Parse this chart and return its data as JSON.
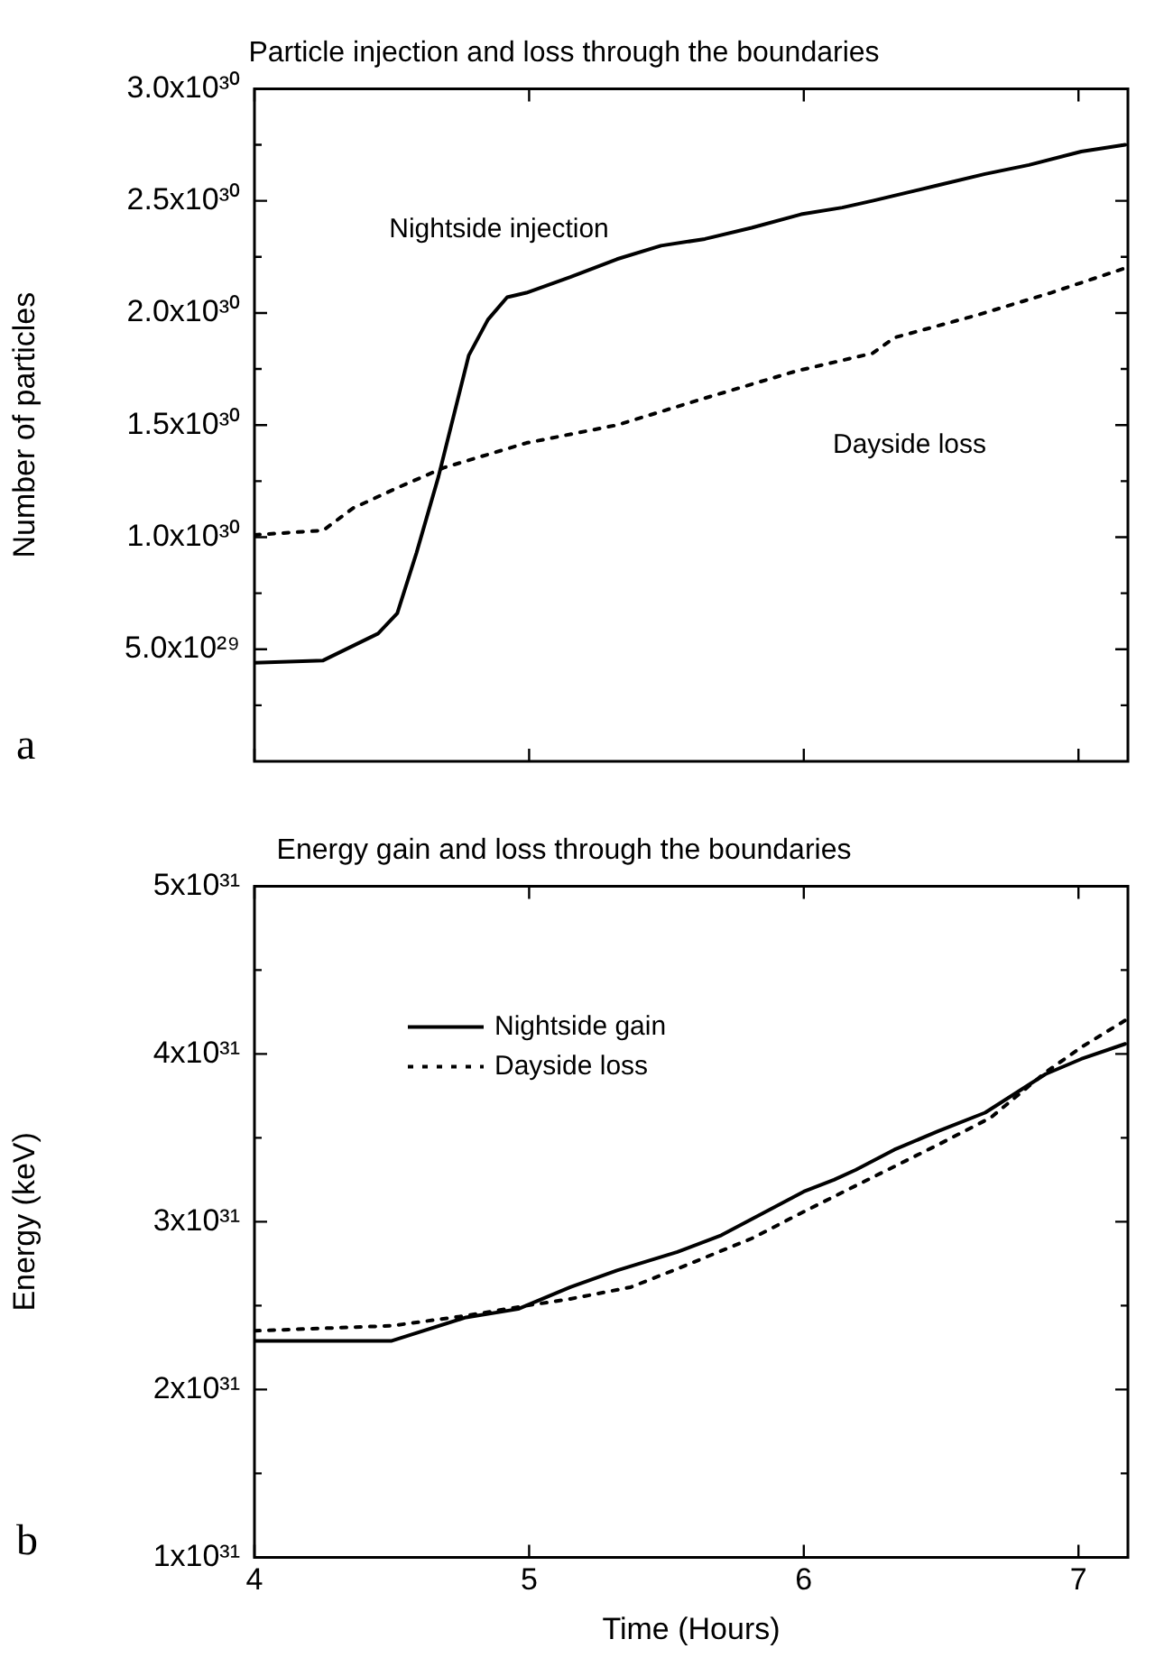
{
  "chart_data": [
    {
      "type": "line",
      "title": "Particle injection and loss through the boundaries",
      "ylabel": "Number of particles",
      "annotations": [
        "a"
      ],
      "xlim": [
        4,
        7.18
      ],
      "xticks": [
        4,
        5,
        6,
        7
      ],
      "ylim": [
        0,
        3e+30
      ],
      "yticks": [
        {
          "value": 2.5e+29,
          "label": null
        },
        {
          "value": 5e+29,
          "label": "5.0x10²⁹"
        },
        {
          "value": 7.5e+29,
          "label": null
        },
        {
          "value": 1e+30,
          "label": "1.0x10³⁰"
        },
        {
          "value": 1.25e+30,
          "label": null
        },
        {
          "value": 1.5e+30,
          "label": "1.5x10³⁰"
        },
        {
          "value": 1.75e+30,
          "label": null
        },
        {
          "value": 2e+30,
          "label": "2.0x10³⁰"
        },
        {
          "value": 2.25e+30,
          "label": null
        },
        {
          "value": 2.5e+30,
          "label": "2.5x10³⁰"
        },
        {
          "value": 2.75e+30,
          "label": null
        },
        {
          "value": 3e+30,
          "label": "3.0x10³⁰"
        }
      ],
      "tick_labels": "y",
      "grid": false,
      "legend": false,
      "marker": "none",
      "series": [
        {
          "name": "Nightside injection",
          "color": "#000000",
          "line_style": "solid",
          "x": [
            4.0,
            4.25,
            4.45,
            4.52,
            4.59,
            4.67,
            4.78,
            4.85,
            4.92,
            4.99,
            5.15,
            5.32,
            5.48,
            5.64,
            5.81,
            5.99,
            6.14,
            6.25,
            6.49,
            6.66,
            6.82,
            7.01,
            7.17
          ],
          "values": [
            4.4e+29,
            4.5e+29,
            5.7e+29,
            6.6e+29,
            9.3e+29,
            1.27e+30,
            1.81e+30,
            1.97e+30,
            2.07e+30,
            2.09e+30,
            2.16e+30,
            2.24e+30,
            2.3e+30,
            2.33e+30,
            2.38e+30,
            2.44e+30,
            2.47e+30,
            2.5e+30,
            2.57e+30,
            2.62e+30,
            2.66e+30,
            2.72e+30,
            2.75e+30
          ]
        },
        {
          "name": "Dayside loss",
          "color": "#000000",
          "line_style": "dotted",
          "x": [
            4.0,
            4.25,
            4.36,
            4.52,
            4.69,
            4.99,
            5.32,
            5.64,
            5.97,
            6.25,
            6.33,
            6.63,
            6.9,
            7.17
          ],
          "values": [
            1.01e+30,
            1.03e+30,
            1.13e+30,
            1.22e+30,
            1.31e+30,
            1.42e+30,
            1.5e+30,
            1.62e+30,
            1.74e+30,
            1.82e+30,
            1.89e+30,
            1.99e+30,
            2.09e+30,
            2.2e+30
          ]
        }
      ]
    },
    {
      "type": "line",
      "title": "Energy gain and loss through the boundaries",
      "xlabel": "Time (Hours)",
      "ylabel": "Energy (keV)",
      "annotations": [
        "b"
      ],
      "xlim": [
        4,
        7.18
      ],
      "xticks": [
        4,
        5,
        6,
        7
      ],
      "ylim": [
        1e+31,
        5e+31
      ],
      "yticks": [
        {
          "value": 1e+31,
          "label": "1x10³¹"
        },
        {
          "value": 1.5e+31,
          "label": null
        },
        {
          "value": 2e+31,
          "label": "2x10³¹"
        },
        {
          "value": 2.5e+31,
          "label": null
        },
        {
          "value": 3e+31,
          "label": "3x10³¹"
        },
        {
          "value": 3.5e+31,
          "label": null
        },
        {
          "value": 4e+31,
          "label": "4x10³¹"
        },
        {
          "value": 4.5e+31,
          "label": null
        },
        {
          "value": 5e+31,
          "label": "5x10³¹"
        }
      ],
      "grid": false,
      "legend": "top left",
      "marker": "none",
      "series": [
        {
          "name": "Nightside gain",
          "color": "#000000",
          "line_style": "solid",
          "x": [
            4.0,
            4.5,
            4.77,
            4.96,
            5.15,
            5.32,
            5.54,
            5.7,
            6.0,
            6.11,
            6.19,
            6.33,
            6.49,
            6.66,
            6.88,
            7.01,
            7.17
          ],
          "values": [
            2.29e+31,
            2.29e+31,
            2.43e+31,
            2.48e+31,
            2.61e+31,
            2.71e+31,
            2.82e+31,
            2.92e+31,
            3.18e+31,
            3.25e+31,
            3.31e+31,
            3.43e+31,
            3.54e+31,
            3.65e+31,
            3.88e+31,
            3.97e+31,
            4.06e+31
          ]
        },
        {
          "name": "Dayside loss",
          "color": "#000000",
          "line_style": "dotted",
          "x": [
            4.0,
            4.5,
            4.77,
            4.99,
            5.15,
            5.37,
            5.54,
            5.81,
            6.0,
            6.22,
            6.49,
            6.68,
            6.88,
            7.01,
            7.17
          ],
          "values": [
            2.35e+31,
            2.38e+31,
            2.44e+31,
            2.5e+31,
            2.54e+31,
            2.61e+31,
            2.72e+31,
            2.9e+31,
            3.06e+31,
            3.24e+31,
            3.46e+31,
            3.62e+31,
            3.89e+31,
            4.04e+31,
            4.2e+31
          ]
        }
      ]
    }
  ]
}
